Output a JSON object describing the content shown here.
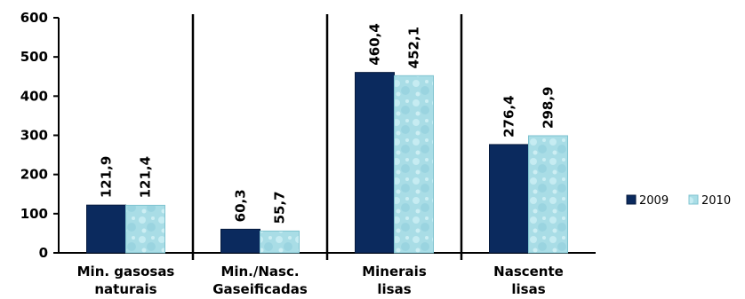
{
  "chart_data": {
    "type": "bar",
    "categories": [
      [
        "Min. gasosas",
        "naturais"
      ],
      [
        "Min./Nasc.",
        "Gaseificadas"
      ],
      [
        "Minerais",
        "lisas"
      ],
      [
        "Nascente",
        "lisas"
      ]
    ],
    "series": [
      {
        "name": "2009",
        "values": [
          121.9,
          60.3,
          460.4,
          276.4
        ],
        "labels": [
          "121,9",
          "60,3",
          "460,4",
          "276,4"
        ],
        "color": "#0b2a5e"
      },
      {
        "name": "2010",
        "values": [
          121.4,
          55.7,
          452.1,
          298.9
        ],
        "labels": [
          "121,4",
          "55,7",
          "452,1",
          "298,9"
        ],
        "color": "#a6dbe4"
      }
    ],
    "ylim": [
      0,
      600
    ],
    "yticks": [
      "0",
      "100",
      "200",
      "300",
      "400",
      "500",
      "600"
    ],
    "legend_position": "right",
    "category_separators": true
  }
}
